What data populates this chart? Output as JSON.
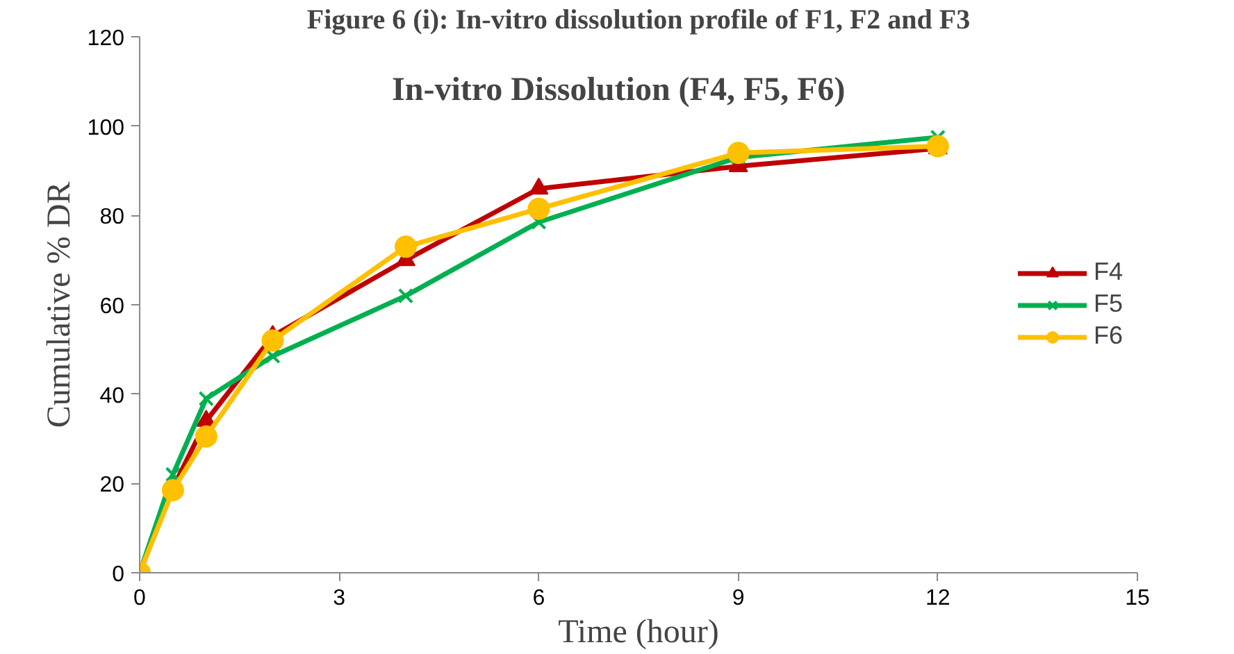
{
  "chart_data": {
    "type": "line",
    "title": "In-vitro Dissolution (F4, F5, F6)",
    "annotations": [
      "Figure 6 (i): In-vitro dissolution profile of F1, F2 and F3"
    ],
    "xlabel": "Time (hour)",
    "ylabel": "Cumulative % DR",
    "x": [
      0,
      0.5,
      1,
      2,
      4,
      6,
      9,
      12
    ],
    "series": [
      {
        "name": "F4",
        "color": "#c00000",
        "marker": "triangle",
        "values": [
          0,
          19,
          34,
          53,
          70,
          86,
          91,
          95
        ]
      },
      {
        "name": "F5",
        "color": "#00b050",
        "marker": "cross",
        "values": [
          0,
          22,
          39,
          48.5,
          62,
          78.5,
          93,
          97.5
        ]
      },
      {
        "name": "F6",
        "color": "#ffc000",
        "marker": "circle",
        "values": [
          0,
          18.5,
          30.5,
          52,
          73,
          81.5,
          94,
          95.5
        ]
      }
    ],
    "xlim": [
      0,
      15
    ],
    "xticks": [
      0,
      3,
      6,
      9,
      12,
      15
    ],
    "ylim": [
      0,
      120
    ],
    "yticks": [
      0,
      20,
      40,
      60,
      80,
      100,
      120
    ],
    "grid": false,
    "legend": "right",
    "line_style": "solid"
  }
}
